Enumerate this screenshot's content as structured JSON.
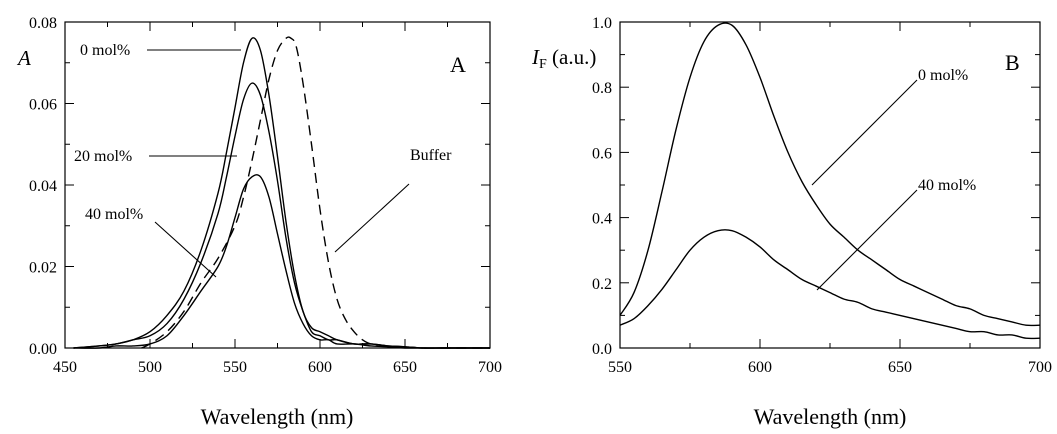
{
  "chart_data": [
    {
      "type": "line",
      "panel_label": "A",
      "xlabel": "Wavelength (nm)",
      "ylabel": "A",
      "xlim": [
        450,
        700
      ],
      "ylim": [
        0,
        0.08
      ],
      "x_ticks": [
        450,
        500,
        550,
        600,
        650,
        700
      ],
      "x_tick_labels": [
        "450",
        "500",
        "550",
        "600",
        "650",
        "700"
      ],
      "y_ticks": [
        0,
        0.02,
        0.04,
        0.06,
        0.08
      ],
      "y_tick_labels": [
        "0.00",
        "0.02",
        "0.04",
        "0.06",
        "0.08"
      ],
      "grid": false,
      "series": [
        {
          "name": "0 mol%",
          "style": "solid",
          "x": [
            455,
            470,
            480,
            490,
            500,
            510,
            520,
            530,
            540,
            545,
            550,
            555,
            560,
            565,
            570,
            575,
            580,
            585,
            590,
            595,
            600,
            605,
            610,
            620,
            630,
            640,
            650,
            660,
            670,
            680,
            690,
            700
          ],
          "y": [
            0.0,
            0.0005,
            0.001,
            0.002,
            0.004,
            0.008,
            0.014,
            0.024,
            0.038,
            0.048,
            0.059,
            0.07,
            0.076,
            0.073,
            0.062,
            0.047,
            0.031,
            0.018,
            0.009,
            0.005,
            0.004,
            0.003,
            0.002,
            0.001,
            0.001,
            0.0005,
            0.0003,
            0.0,
            0.0,
            0.0,
            0.0,
            0.0
          ]
        },
        {
          "name": "20 mol%",
          "style": "solid",
          "x": [
            455,
            470,
            480,
            490,
            500,
            510,
            520,
            530,
            540,
            545,
            550,
            555,
            560,
            565,
            570,
            575,
            580,
            585,
            590,
            595,
            600,
            605,
            610,
            620,
            630,
            640,
            650,
            660,
            670,
            680,
            690,
            700
          ],
          "y": [
            0.0,
            0.0005,
            0.001,
            0.002,
            0.003,
            0.006,
            0.012,
            0.021,
            0.033,
            0.042,
            0.052,
            0.061,
            0.065,
            0.062,
            0.053,
            0.041,
            0.027,
            0.016,
            0.009,
            0.004,
            0.003,
            0.002,
            0.002,
            0.001,
            0.001,
            0.0005,
            0.0003,
            0.0,
            0.0,
            0.0,
            0.0,
            0.0
          ]
        },
        {
          "name": "40 mol%",
          "style": "solid",
          "x": [
            455,
            470,
            480,
            490,
            500,
            510,
            520,
            530,
            540,
            545,
            550,
            555,
            560,
            565,
            570,
            575,
            580,
            585,
            590,
            595,
            600,
            605,
            610,
            620,
            630,
            640,
            650,
            660,
            670,
            680,
            690,
            700
          ],
          "y": [
            0.0,
            0.0,
            0.0005,
            0.0005,
            0.001,
            0.003,
            0.008,
            0.014,
            0.02,
            0.025,
            0.032,
            0.039,
            0.042,
            0.042,
            0.037,
            0.028,
            0.019,
            0.011,
            0.006,
            0.003,
            0.002,
            0.002,
            0.001,
            0.001,
            0.0005,
            0.0003,
            0.0,
            0.0,
            0.0,
            0.0,
            0.0,
            0.0
          ]
        },
        {
          "name": "Buffer",
          "style": "dashed",
          "x": [
            495,
            500,
            510,
            520,
            530,
            540,
            550,
            555,
            560,
            565,
            570,
            575,
            580,
            583,
            586,
            590,
            595,
            600,
            605,
            610,
            615,
            620,
            625,
            630,
            640,
            650,
            660,
            670,
            680,
            690,
            700
          ],
          "y": [
            0.0,
            0.001,
            0.004,
            0.009,
            0.016,
            0.022,
            0.03,
            0.037,
            0.046,
            0.056,
            0.066,
            0.073,
            0.076,
            0.076,
            0.074,
            0.065,
            0.05,
            0.034,
            0.021,
            0.012,
            0.007,
            0.004,
            0.002,
            0.001,
            0.0005,
            0.0003,
            0.0,
            0.0,
            0.0,
            0.0,
            0.0
          ]
        }
      ],
      "annotations": [
        {
          "text": "0 mol%"
        },
        {
          "text": "20 mol%"
        },
        {
          "text": "40 mol%"
        },
        {
          "text": "Buffer"
        }
      ]
    },
    {
      "type": "line",
      "panel_label": "B",
      "xlabel": "Wavelength (nm)",
      "ylabel_main": "I",
      "ylabel_sub": "F",
      "ylabel_rest": " (a.u.)",
      "xlim": [
        550,
        700
      ],
      "ylim": [
        0,
        1.0
      ],
      "x_ticks": [
        550,
        600,
        650,
        700
      ],
      "x_tick_labels": [
        "550",
        "600",
        "650",
        "700"
      ],
      "y_ticks": [
        0,
        0.2,
        0.4,
        0.6,
        0.8,
        1.0
      ],
      "y_tick_labels": [
        "0.0",
        "0.2",
        "0.4",
        "0.6",
        "0.8",
        "1.0"
      ],
      "grid": false,
      "series": [
        {
          "name": "0 mol%",
          "style": "solid",
          "x": [
            550,
            555,
            560,
            565,
            570,
            575,
            580,
            585,
            590,
            595,
            600,
            605,
            610,
            615,
            620,
            625,
            630,
            635,
            640,
            645,
            650,
            655,
            660,
            665,
            670,
            675,
            680,
            685,
            690,
            695,
            700
          ],
          "y": [
            0.1,
            0.17,
            0.3,
            0.48,
            0.67,
            0.83,
            0.94,
            0.99,
            0.99,
            0.93,
            0.83,
            0.71,
            0.6,
            0.51,
            0.44,
            0.38,
            0.34,
            0.3,
            0.27,
            0.24,
            0.21,
            0.19,
            0.17,
            0.15,
            0.13,
            0.12,
            0.1,
            0.09,
            0.08,
            0.07,
            0.07
          ]
        },
        {
          "name": "40 mol%",
          "style": "solid",
          "x": [
            550,
            555,
            560,
            565,
            570,
            575,
            580,
            585,
            590,
            595,
            600,
            605,
            610,
            615,
            620,
            625,
            630,
            635,
            640,
            645,
            650,
            655,
            660,
            665,
            670,
            675,
            680,
            685,
            690,
            695,
            700
          ],
          "y": [
            0.07,
            0.09,
            0.13,
            0.18,
            0.24,
            0.3,
            0.34,
            0.36,
            0.36,
            0.34,
            0.31,
            0.27,
            0.24,
            0.21,
            0.19,
            0.17,
            0.15,
            0.14,
            0.12,
            0.11,
            0.1,
            0.09,
            0.08,
            0.07,
            0.06,
            0.05,
            0.05,
            0.04,
            0.04,
            0.03,
            0.03
          ]
        }
      ],
      "annotations": [
        {
          "text": "0 mol%"
        },
        {
          "text": "40 mol%"
        }
      ]
    }
  ]
}
